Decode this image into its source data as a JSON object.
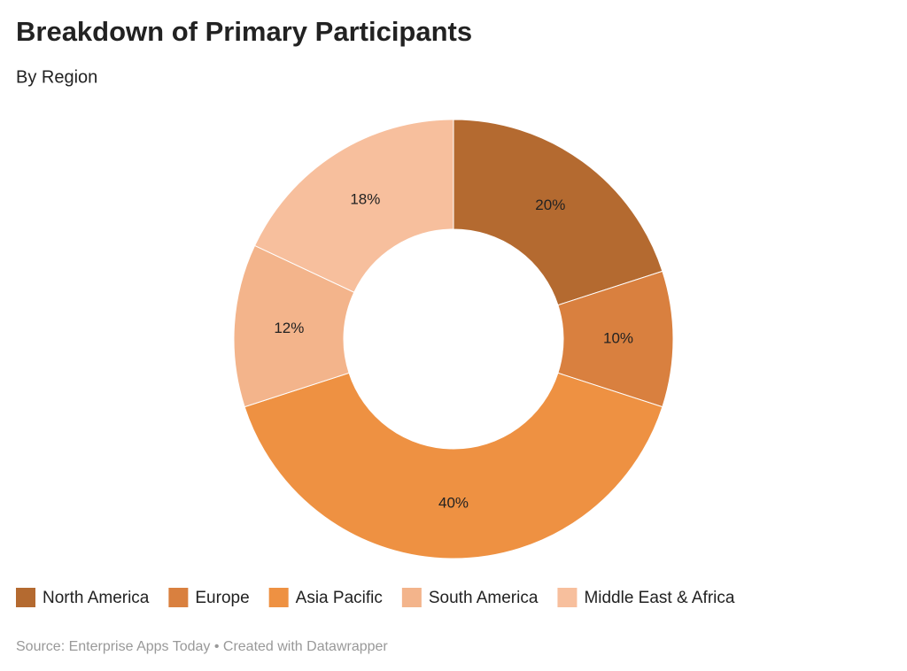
{
  "chart_data": {
    "type": "donut",
    "title": "Breakdown of Primary Participants",
    "subtitle": "By Region",
    "categories": [
      "North America",
      "Europe",
      "Asia Pacific",
      "South America",
      "Middle East & Africa"
    ],
    "values": [
      20,
      10,
      40,
      12,
      18
    ],
    "value_labels": [
      "20%",
      "10%",
      "40%",
      "12%",
      "18%"
    ],
    "colors": [
      "#b46a30",
      "#d9803f",
      "#ee9142",
      "#f3b48b",
      "#f7bf9d"
    ],
    "source": "Source: Enterprise Apps Today • Created with Datawrapper"
  }
}
